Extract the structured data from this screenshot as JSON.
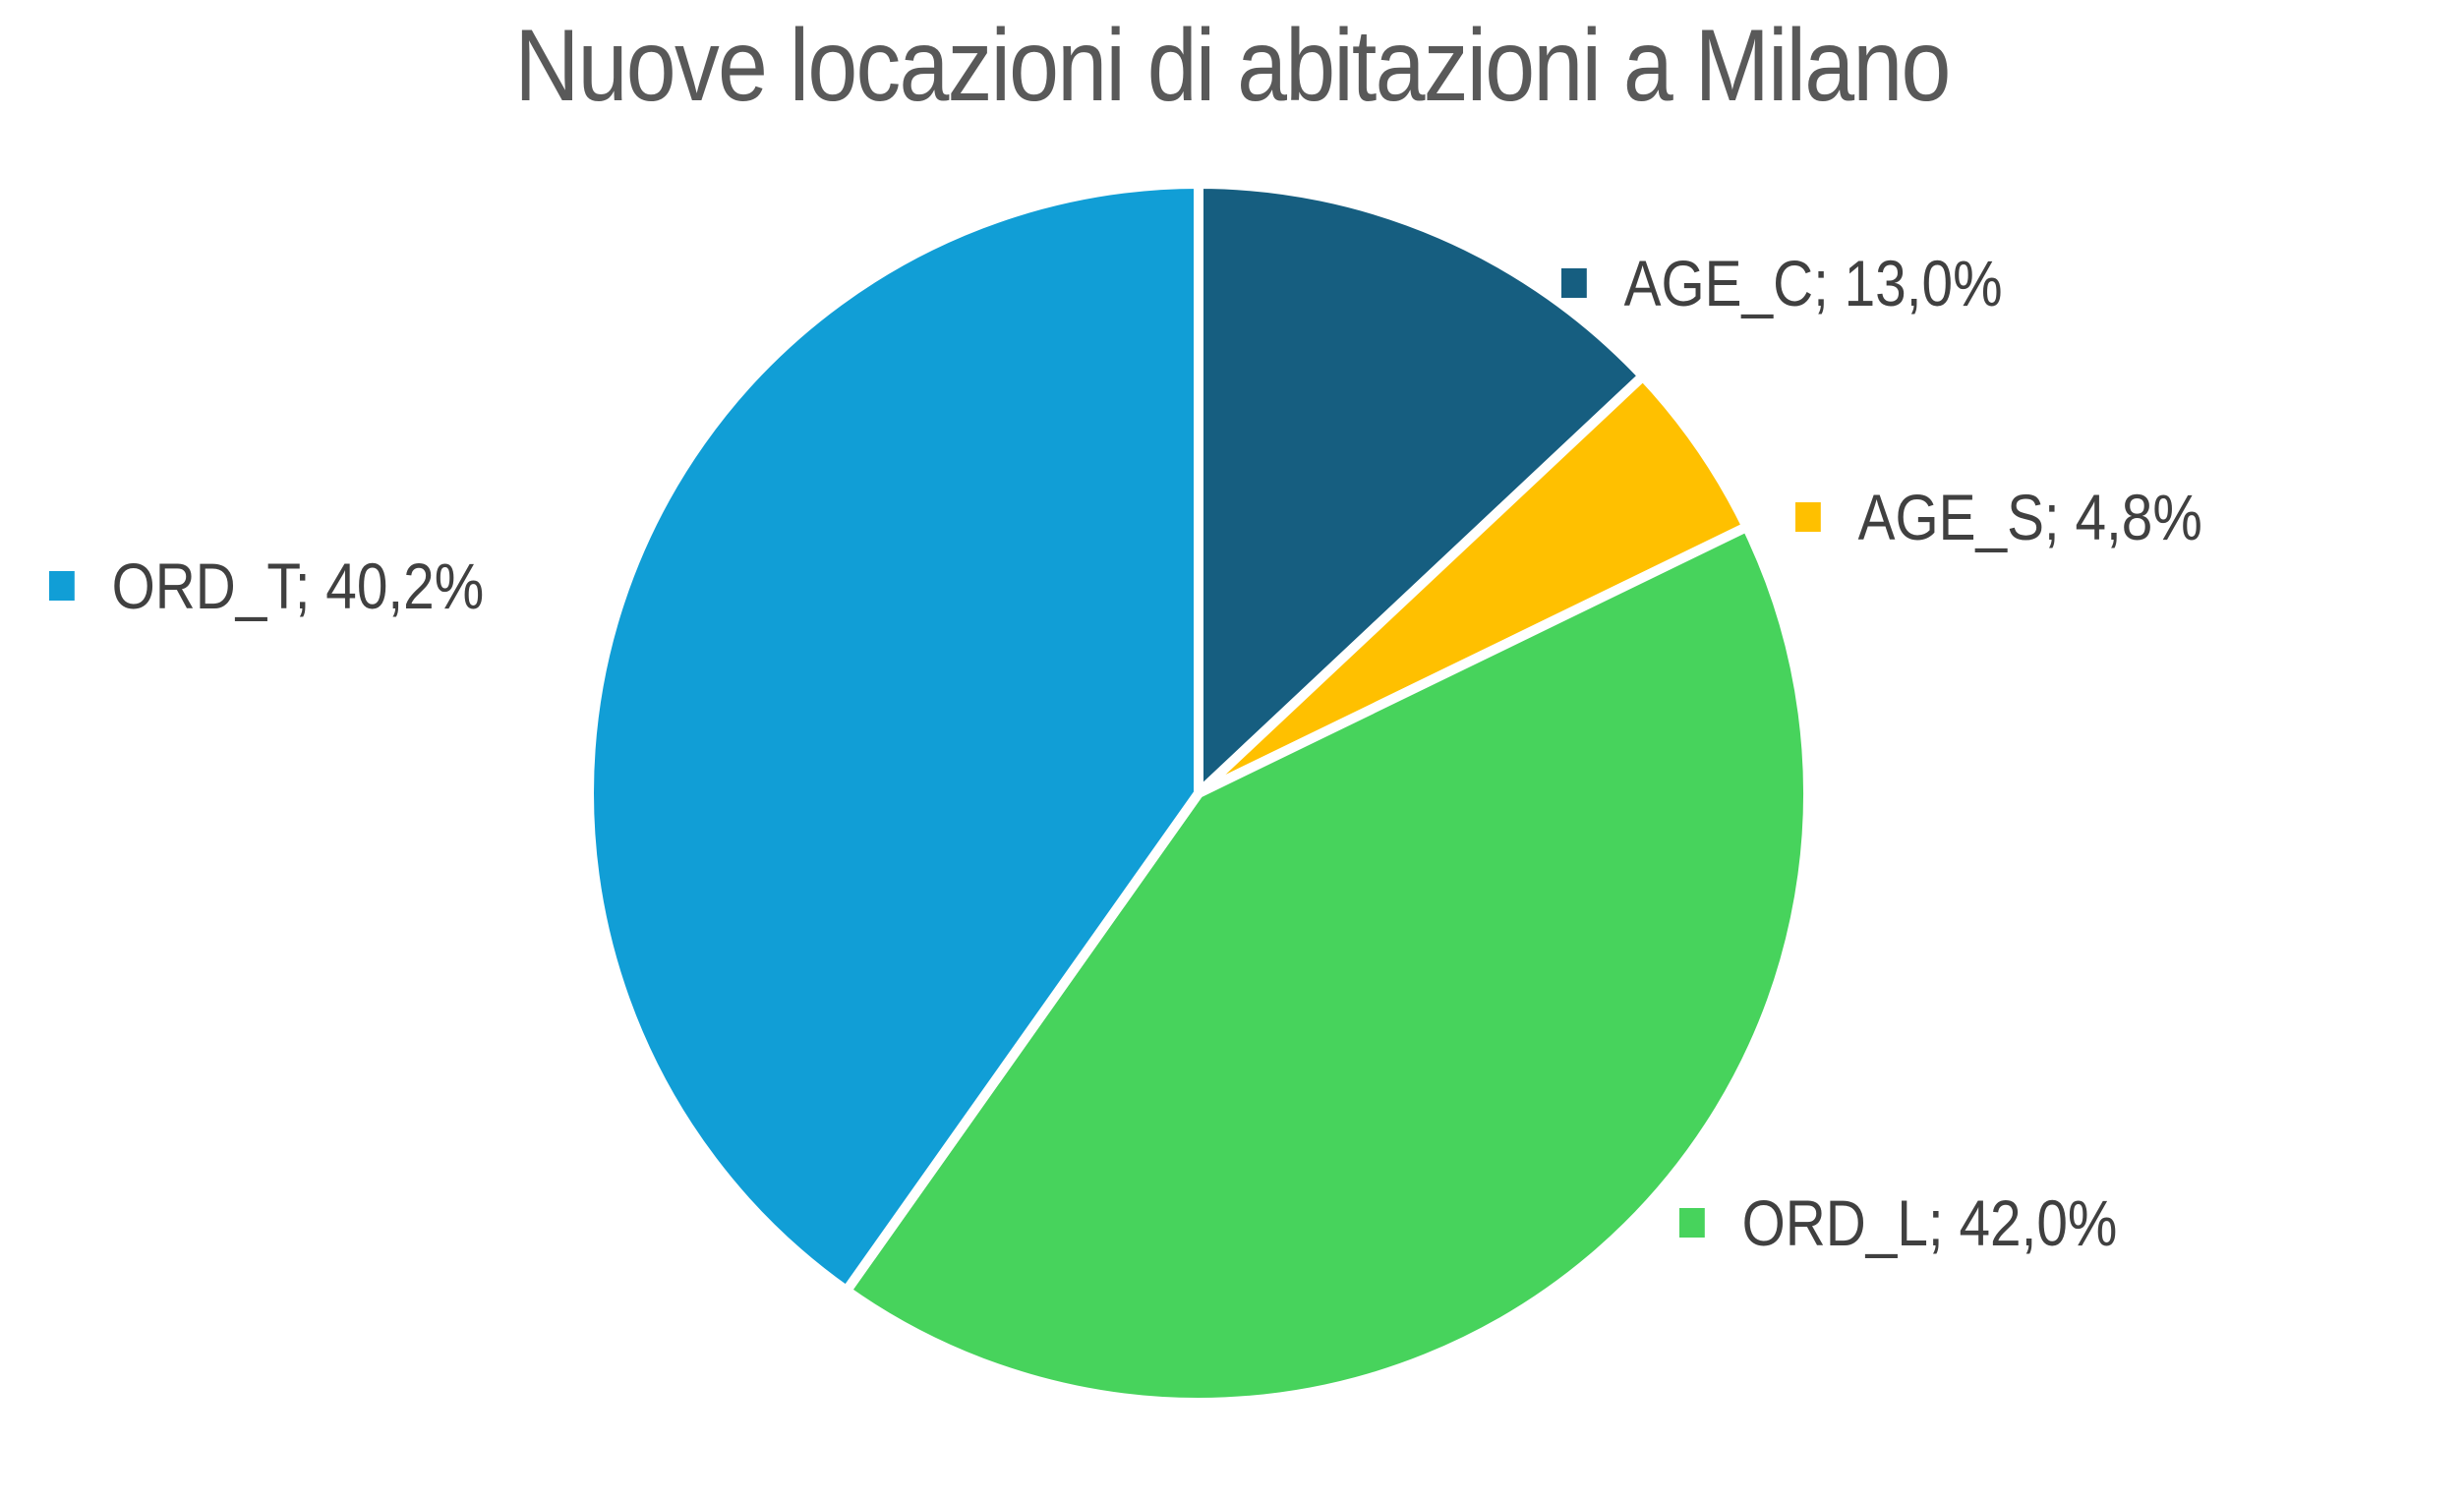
{
  "chart_data": {
    "type": "pie",
    "title": "Nuove locazioni di abitazioni a Milano",
    "categories": [
      "AGE_C",
      "AGE_S",
      "ORD_L",
      "ORD_T"
    ],
    "values": [
      13.0,
      4.8,
      42.0,
      40.2
    ],
    "value_labels": [
      "13,0%",
      "4,8%",
      "42,0%",
      "40,2%"
    ],
    "colors": [
      "#165E80",
      "#FFC000",
      "#47D35C",
      "#119ED6"
    ],
    "start_angle_deg": 0,
    "direction": "clockwise",
    "legend": "none",
    "data_labels": [
      "AGE_C; 13,0%",
      "AGE_S; 4,8%",
      "ORD_L; 42,0%",
      "ORD_T; 40,2%"
    ]
  },
  "labels": {
    "age_c": "AGE_C; 13,0%",
    "age_s": "AGE_S; 4,8%",
    "ord_l": "ORD_L; 42,0%",
    "ord_t": "ORD_T; 40,2%"
  }
}
